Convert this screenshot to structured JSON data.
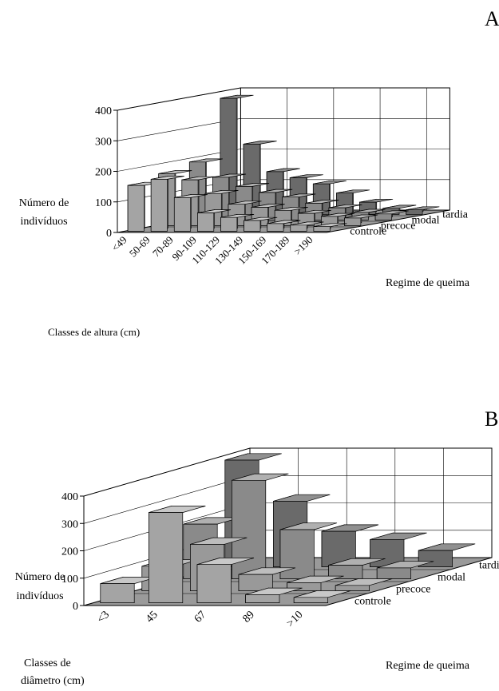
{
  "chart_data": [
    {
      "panel_label": "A",
      "type": "bar3d",
      "ylabel": "Número de indivíduos",
      "xlabel": "Classes de altura (cm)",
      "zlabel": "Regime de queima",
      "ylim": [
        0,
        400
      ],
      "yticks": [
        "0",
        "100",
        "200",
        "300",
        "400"
      ],
      "categories": [
        "<49",
        "50-69",
        "70-89",
        "90-109",
        "110-129",
        "130-149",
        "150-169",
        "170-189",
        ">190"
      ],
      "series": [
        {
          "name": "controle",
          "values": [
            150,
            170,
            110,
            60,
            45,
            35,
            25,
            20,
            15
          ]
        },
        {
          "name": "precoce",
          "values": [
            170,
            150,
            105,
            70,
            60,
            50,
            40,
            30,
            25
          ]
        },
        {
          "name": "modal",
          "values": [
            190,
            140,
            110,
            90,
            75,
            55,
            40,
            25,
            20
          ]
        },
        {
          "name": "tardia",
          "values": [
            380,
            230,
            140,
            120,
            100,
            70,
            40,
            20,
            15
          ]
        }
      ]
    },
    {
      "panel_label": "B",
      "type": "bar3d",
      "ylabel": "Número de indivíduos",
      "xlabel": "Classes de diâmetro (cm)",
      "zlabel": "Regime de queima",
      "ylim": [
        0,
        400
      ],
      "yticks": [
        "0",
        "100",
        "200",
        "300",
        "400"
      ],
      "categories": [
        "<3",
        "45",
        "67",
        "89",
        ">10"
      ],
      "series": [
        {
          "name": "controle",
          "values": [
            70,
            330,
            140,
            30,
            20
          ]
        },
        {
          "name": "precoce",
          "values": [
            90,
            170,
            60,
            30,
            20
          ]
        },
        {
          "name": "modal",
          "values": [
            200,
            360,
            180,
            50,
            40
          ]
        },
        {
          "name": "tardia",
          "values": [
            390,
            240,
            130,
            100,
            60
          ]
        }
      ]
    }
  ],
  "colors": {
    "bar_side": "#e8e8e8",
    "bar_front_by_series": [
      "#a4a4a4",
      "#999999",
      "#8a8a8a",
      "#6a6a6a"
    ],
    "bar_top_by_series": [
      "#c8c8c8",
      "#bdbdbd",
      "#b0b0b0",
      "#909090"
    ],
    "floor": "#9a9a9a",
    "walls": "#ffffff",
    "lines": "#000000"
  }
}
